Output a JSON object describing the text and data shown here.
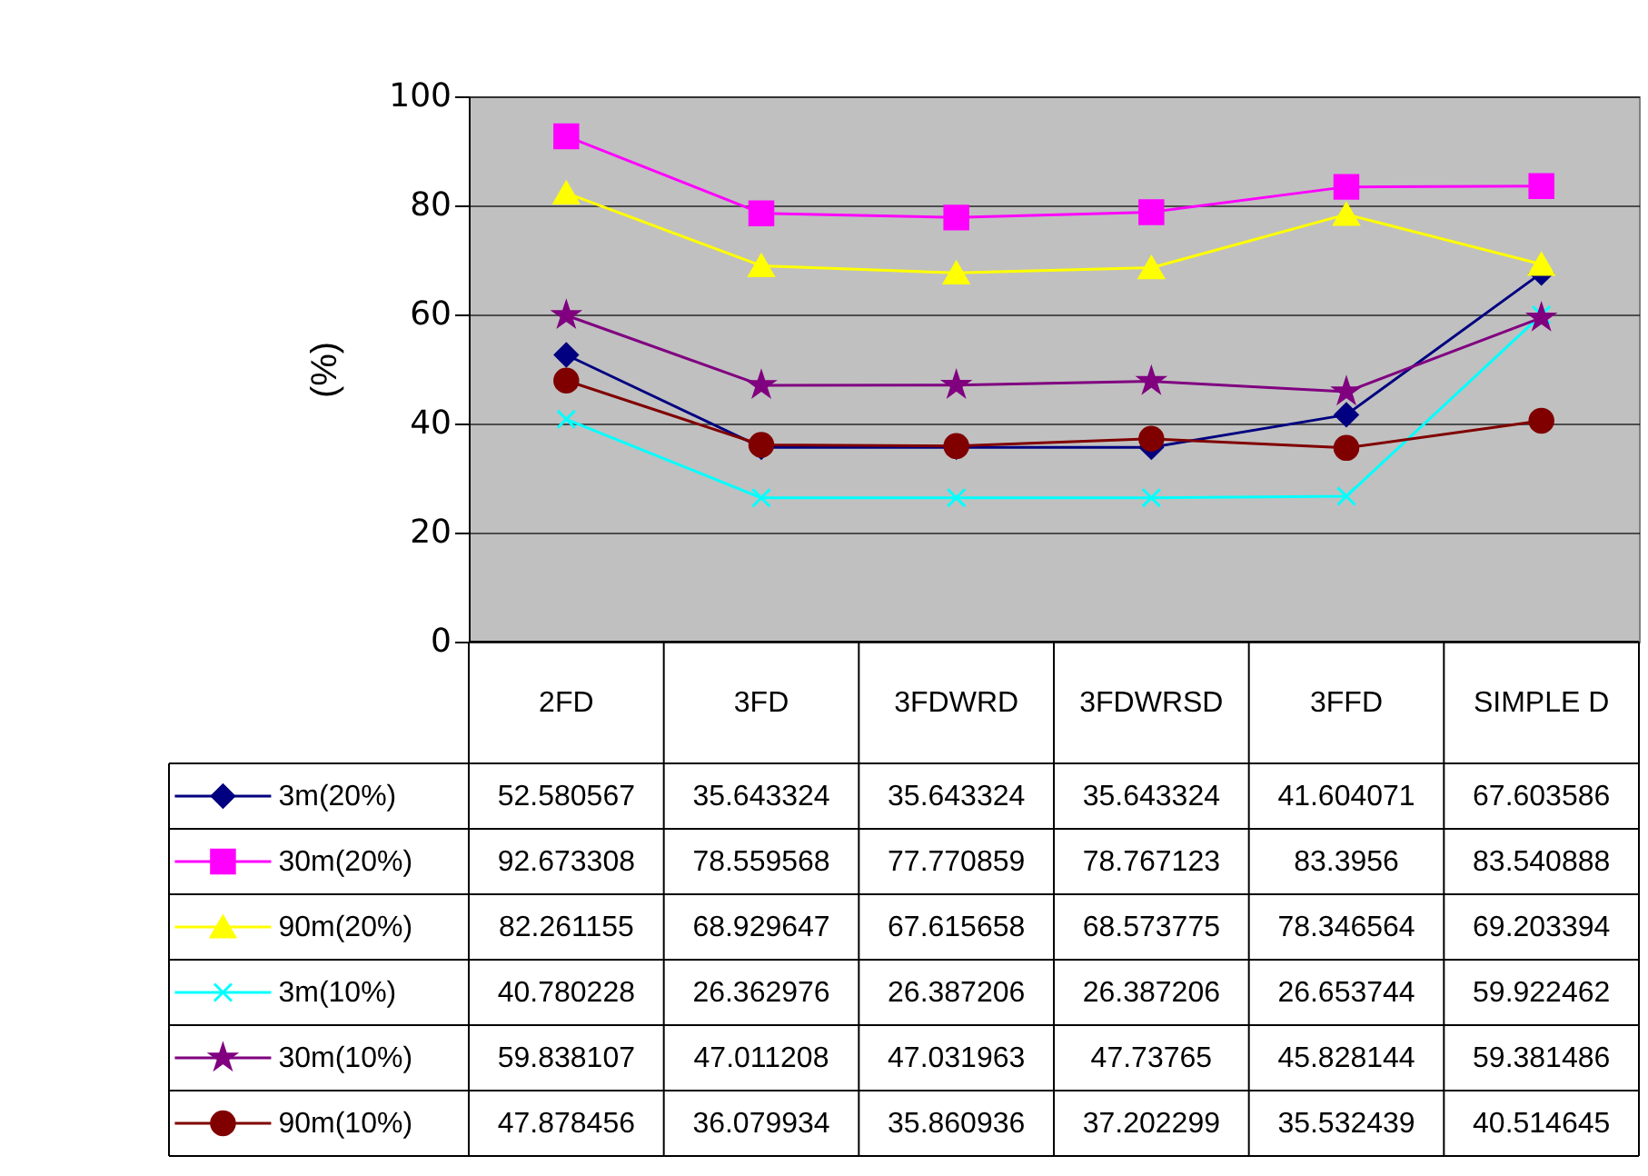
{
  "chart_data": {
    "type": "line",
    "ylabel": "(%)",
    "categories": [
      "2FD",
      "3FD",
      "3FDWRD",
      "3FDWRSD",
      "3FFD",
      "SIMPLE D"
    ],
    "series": [
      {
        "name": "3m(20%)",
        "color": "#000080",
        "marker": "diamond",
        "values": [
          52.580567,
          35.643324,
          35.643324,
          35.643324,
          41.604071,
          67.603586
        ]
      },
      {
        "name": "30m(20%)",
        "color": "#ff00ff",
        "marker": "square",
        "values": [
          92.673308,
          78.559568,
          77.770859,
          78.767123,
          83.3956,
          83.540888
        ]
      },
      {
        "name": "90m(20%)",
        "color": "#ffff00",
        "marker": "triangle",
        "values": [
          82.261155,
          68.929647,
          67.615658,
          68.573775,
          78.346564,
          69.203394
        ]
      },
      {
        "name": "3m(10%)",
        "color": "#00ffff",
        "marker": "cross",
        "values": [
          40.780228,
          26.362976,
          26.387206,
          26.387206,
          26.653744,
          59.922462
        ]
      },
      {
        "name": "30m(10%)",
        "color": "#800080",
        "marker": "star",
        "values": [
          59.838107,
          47.011208,
          47.031963,
          47.73765,
          45.828144,
          59.381486
        ]
      },
      {
        "name": "90m(10%)",
        "color": "#800000",
        "marker": "circle",
        "values": [
          47.878456,
          36.079934,
          35.860936,
          37.202299,
          35.532439,
          40.514645
        ]
      }
    ],
    "ylim": [
      0,
      100
    ],
    "yticks": [
      0,
      20,
      40,
      60,
      80,
      100
    ],
    "grid": "y",
    "legend": "bottom",
    "data_labels": true,
    "line_style": "solid"
  }
}
